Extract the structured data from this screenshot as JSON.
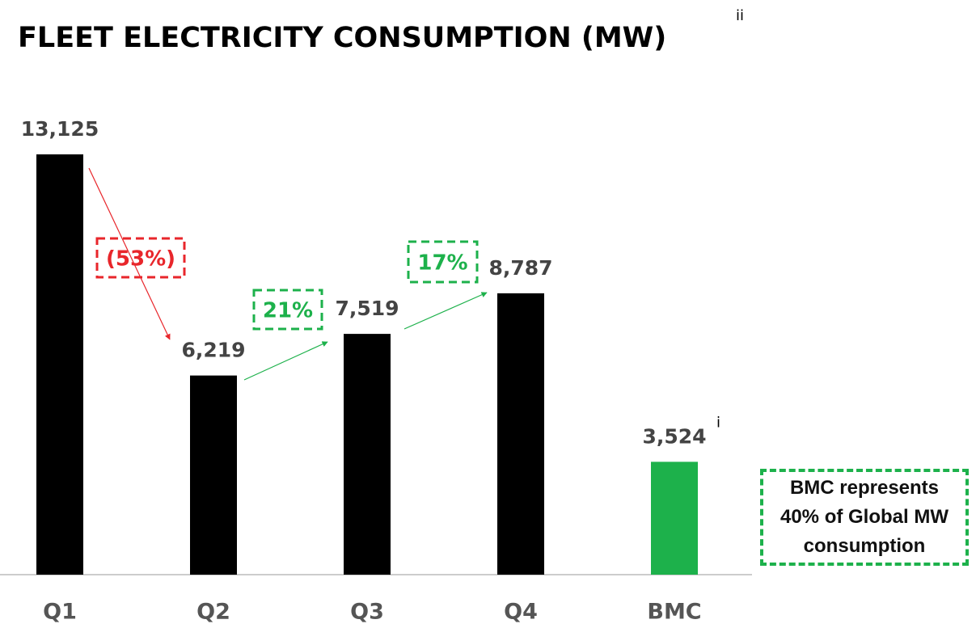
{
  "chart_data": {
    "type": "bar",
    "title": "FLEET ELECTRICITY CONSUMPTION (MW)",
    "title_superscript": "ii",
    "categories": [
      "Q1",
      "Q2",
      "Q3",
      "Q4",
      "BMC"
    ],
    "values": [
      13125,
      6219,
      7519,
      8787,
      3524
    ],
    "value_labels": [
      "13,125",
      "6,219",
      "7,519",
      "8,787",
      "3,524"
    ],
    "colors": [
      "#000000",
      "#000000",
      "#000000",
      "#000000",
      "#1db14b"
    ],
    "bmc_superscript": "i",
    "annotations": [
      {
        "text": "(53%)",
        "color": "#e8262b"
      },
      {
        "text": "21%",
        "color": "#1db14b"
      },
      {
        "text": "17%",
        "color": "#1db14b"
      }
    ],
    "note": "BMC represents 40% of Global MW consumption",
    "note_color": "#1db14b"
  }
}
